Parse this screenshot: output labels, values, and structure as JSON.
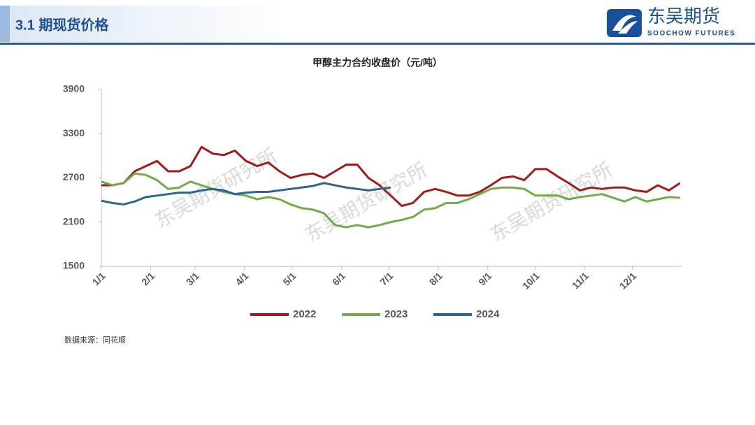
{
  "header": {
    "title": "3.1 期现货价格",
    "logo_cn": "东吴期货",
    "logo_en": "SOOCHOW FUTURES"
  },
  "watermark": "东吴期货研究所",
  "source": "数据来源：同花顺",
  "chart_data": {
    "type": "line",
    "title": "甲醇主力合约收盘价（元/吨）",
    "x": [
      0,
      7,
      14,
      21,
      28,
      35,
      42,
      49,
      56,
      63,
      70,
      77,
      84,
      91,
      98,
      105,
      112,
      119,
      126,
      133,
      140,
      147,
      154,
      161,
      168,
      175,
      182,
      189,
      196,
      203,
      210,
      217,
      224,
      231,
      238,
      245,
      252,
      259,
      266,
      273,
      280,
      287,
      294,
      301,
      308,
      315,
      322,
      329,
      336,
      343,
      350,
      357,
      364
    ],
    "xlim": [
      0,
      365
    ],
    "xticks": [
      {
        "value": 0,
        "label": "1/1"
      },
      {
        "value": 31,
        "label": "2/1"
      },
      {
        "value": 59,
        "label": "3/1"
      },
      {
        "value": 90,
        "label": "4/1"
      },
      {
        "value": 120,
        "label": "5/1"
      },
      {
        "value": 151,
        "label": "6/1"
      },
      {
        "value": 181,
        "label": "7/1"
      },
      {
        "value": 212,
        "label": "8/1"
      },
      {
        "value": 243,
        "label": "9/1"
      },
      {
        "value": 273,
        "label": "10/1"
      },
      {
        "value": 304,
        "label": "11/1"
      },
      {
        "value": 334,
        "label": "12/1"
      }
    ],
    "ylim": [
      1500,
      3900
    ],
    "yticks": [
      1500,
      2100,
      2700,
      3300,
      3900
    ],
    "grid": false,
    "legend": "bottom",
    "series": [
      {
        "name": "2022",
        "color": "#a01c1c",
        "values": [
          2600,
          2600,
          2630,
          2790,
          2860,
          2930,
          2790,
          2790,
          2860,
          3120,
          3030,
          3010,
          3070,
          2930,
          2860,
          2910,
          2790,
          2700,
          2740,
          2760,
          2700,
          2790,
          2880,
          2880,
          2700,
          2600,
          2460,
          2320,
          2360,
          2510,
          2550,
          2510,
          2460,
          2460,
          2510,
          2600,
          2700,
          2720,
          2670,
          2820,
          2820,
          2720,
          2630,
          2530,
          2570,
          2550,
          2570,
          2570,
          2530,
          2510,
          2600,
          2530,
          2630
        ]
      },
      {
        "name": "2023",
        "color": "#70ad47",
        "values": [
          2650,
          2600,
          2630,
          2760,
          2740,
          2670,
          2550,
          2570,
          2650,
          2600,
          2550,
          2510,
          2480,
          2460,
          2410,
          2440,
          2410,
          2340,
          2290,
          2270,
          2220,
          2060,
          2030,
          2060,
          2030,
          2060,
          2100,
          2130,
          2170,
          2270,
          2290,
          2360,
          2360,
          2410,
          2480,
          2550,
          2570,
          2570,
          2550,
          2460,
          2460,
          2460,
          2410,
          2440,
          2460,
          2480,
          2430,
          2380,
          2440,
          2380,
          2410,
          2440,
          2430
        ]
      },
      {
        "name": "2024",
        "color": "#2e6491",
        "values": [
          2390,
          2360,
          2340,
          2380,
          2440,
          2460,
          2480,
          2500,
          2500,
          2530,
          2550,
          2530,
          2480,
          2500,
          2510,
          2510,
          2530,
          2550,
          2570,
          2590,
          2630,
          2600,
          2570,
          2550,
          2530,
          2550,
          2570,
          null,
          null,
          null,
          null,
          null,
          null,
          null,
          null,
          null,
          null,
          null,
          null,
          null,
          null,
          null,
          null,
          null,
          null,
          null,
          null,
          null,
          null,
          null,
          null,
          null,
          null
        ]
      }
    ]
  }
}
